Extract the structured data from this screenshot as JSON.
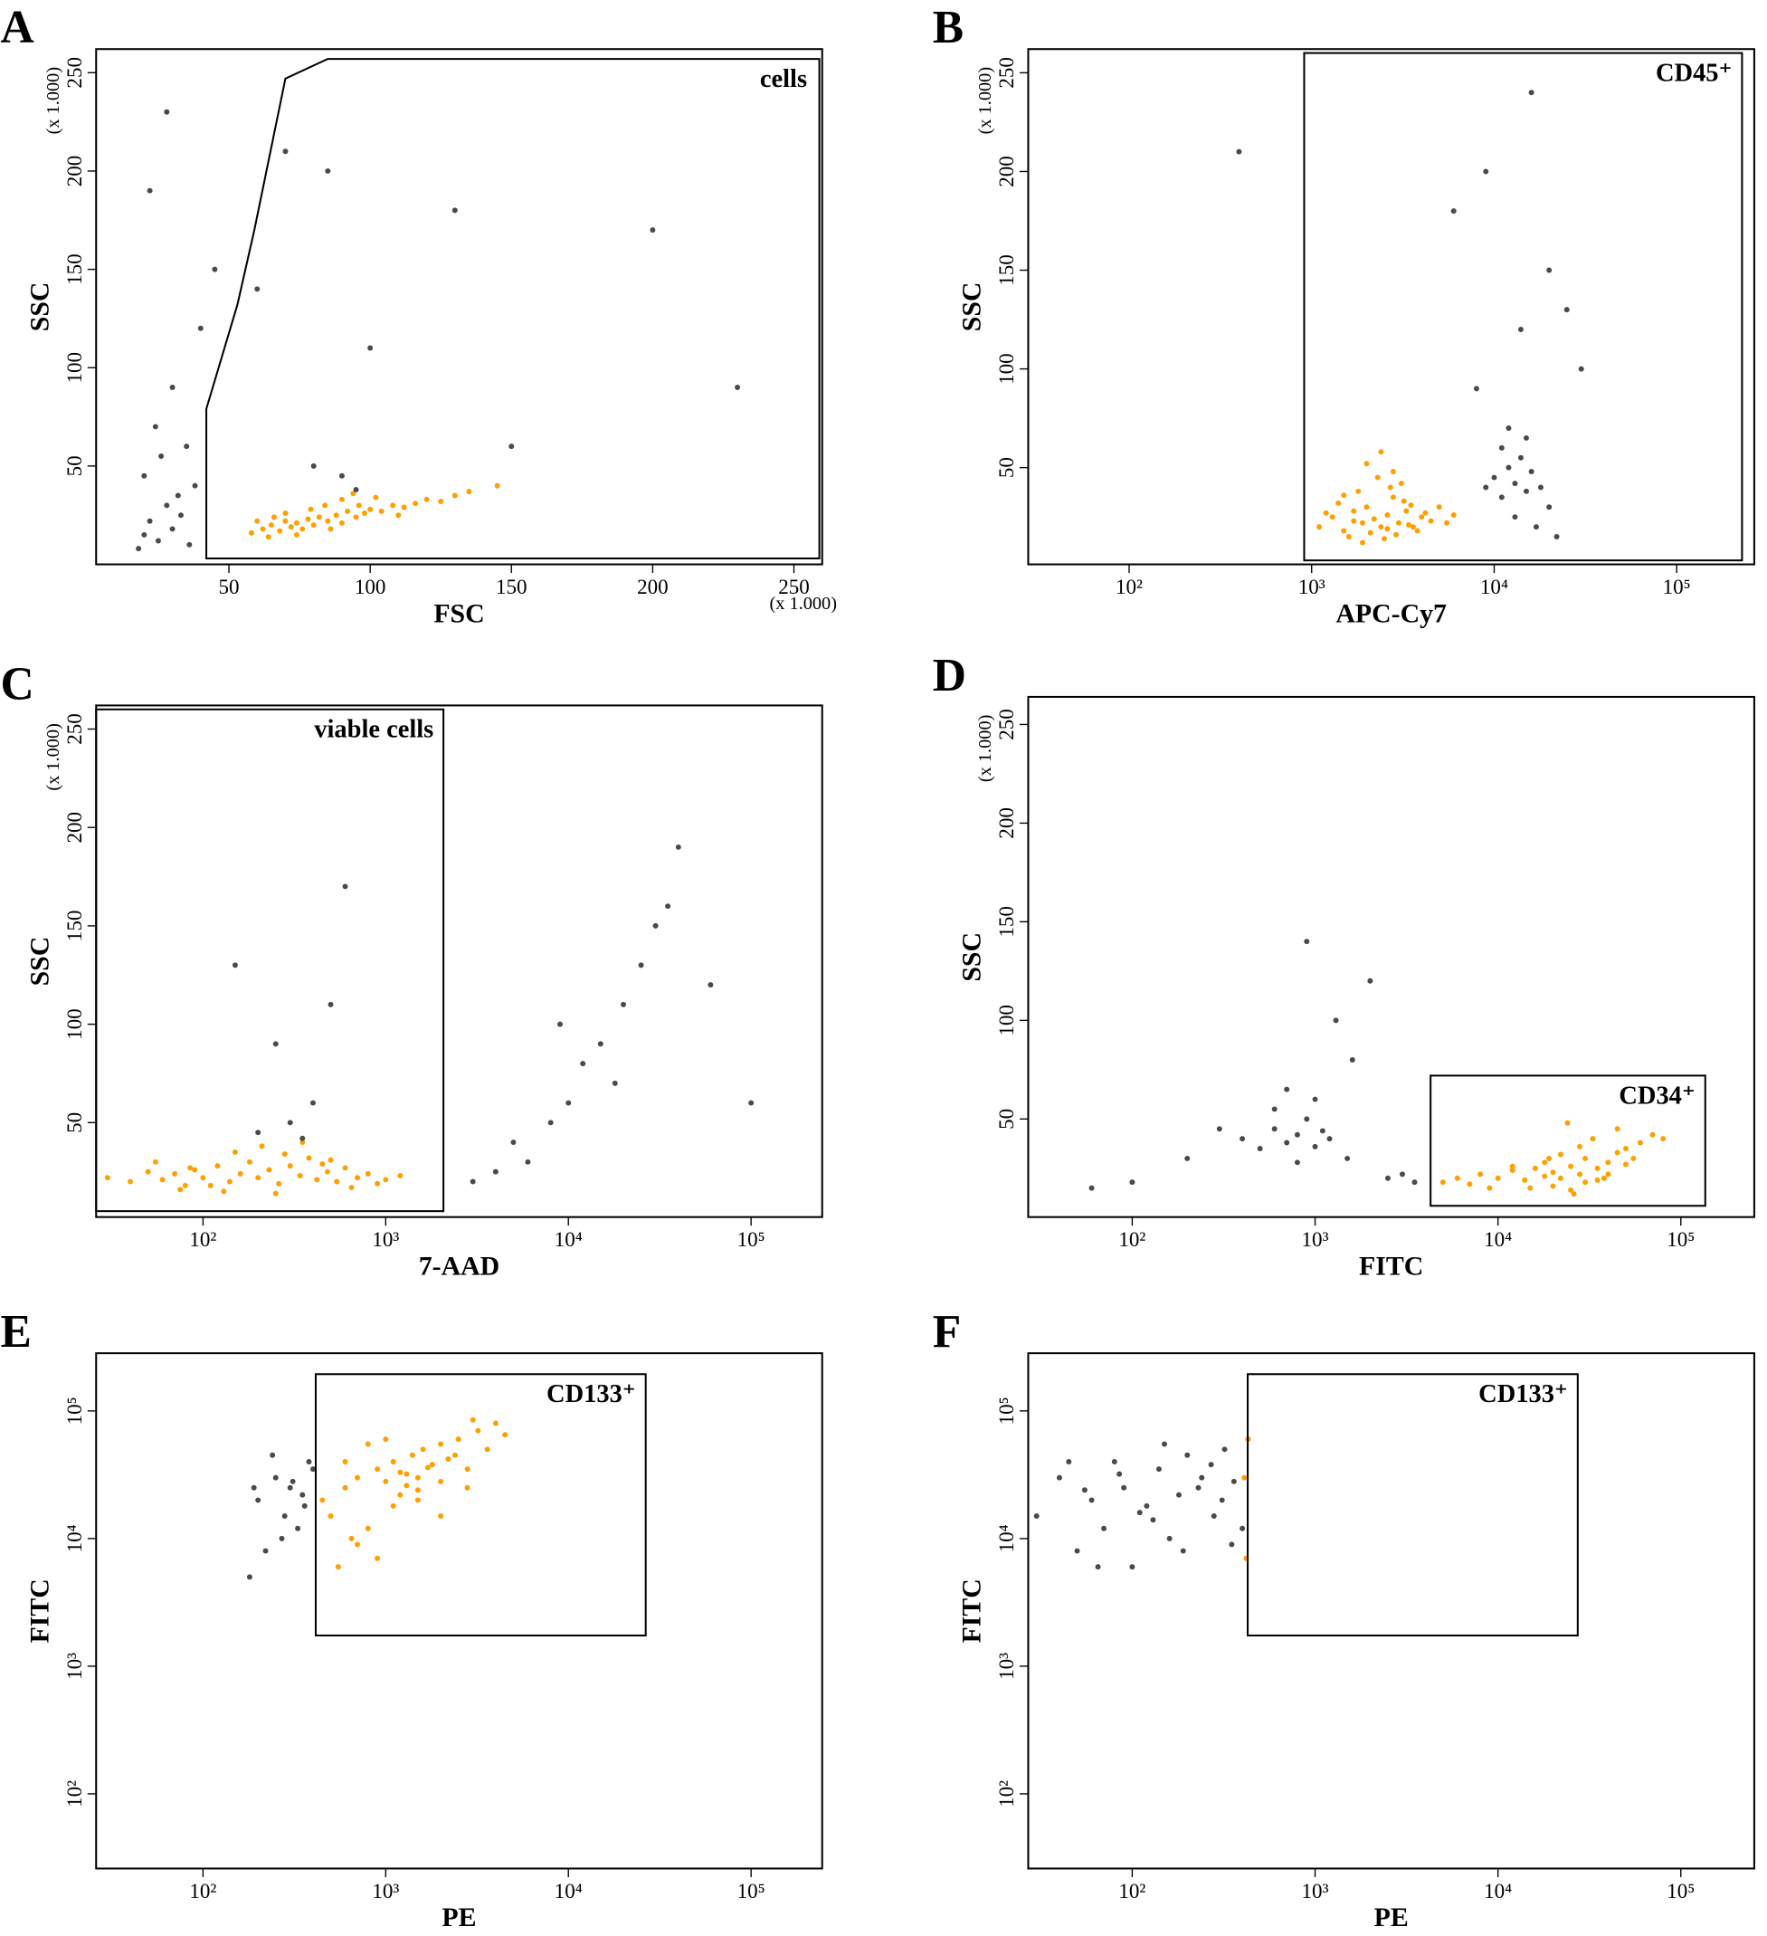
{
  "chart_data": [
    {
      "type": "scatter",
      "panel": "A",
      "x_label": "FSC",
      "y_label": "SSC",
      "x_multiplier": "(x 1.000)",
      "y_multiplier": "(x 1.000)",
      "xscale": "linear",
      "yscale": "linear",
      "xlim": [
        3,
        260
      ],
      "ylim": [
        0,
        262
      ],
      "xticks": [
        50,
        100,
        150,
        200,
        250
      ],
      "yticks": [
        50,
        100,
        150,
        200,
        250
      ],
      "gate": {
        "label": "cells",
        "points": [
          [
            42,
            3
          ],
          [
            42,
            79
          ],
          [
            53,
            132
          ],
          [
            59,
            170
          ],
          [
            70,
            247
          ],
          [
            85,
            257
          ],
          [
            259,
            257
          ],
          [
            259,
            3
          ]
        ]
      },
      "series": [
        {
          "color": "#ff9f00",
          "x": [
            58,
            62,
            65,
            68,
            70,
            72,
            74,
            76,
            78,
            80,
            82,
            85,
            88,
            90,
            92,
            95,
            98,
            100,
            104,
            108,
            112,
            116,
            120,
            125,
            130,
            135,
            66,
            70,
            74,
            79,
            84,
            90,
            96,
            102,
            60,
            64,
            86,
            94,
            110,
            145
          ],
          "values": [
            16,
            18,
            20,
            17,
            22,
            19,
            21,
            18,
            23,
            20,
            24,
            22,
            25,
            21,
            27,
            24,
            26,
            28,
            27,
            30,
            29,
            31,
            33,
            32,
            35,
            37,
            24,
            26,
            15,
            28,
            30,
            33,
            30,
            34,
            22,
            14,
            18,
            36,
            25,
            40
          ]
        },
        {
          "color": "#4a4a4a",
          "x": [
            18,
            20,
            22,
            25,
            28,
            30,
            33,
            36,
            38,
            20,
            26,
            32,
            24,
            35,
            30,
            40,
            45,
            60,
            85,
            90,
            80,
            100,
            130,
            200,
            230,
            28,
            22,
            95,
            150,
            70
          ],
          "values": [
            8,
            15,
            22,
            12,
            30,
            18,
            25,
            10,
            40,
            45,
            55,
            35,
            70,
            60,
            90,
            120,
            150,
            140,
            200,
            45,
            50,
            110,
            180,
            170,
            90,
            230,
            190,
            38,
            60,
            210
          ]
        }
      ]
    },
    {
      "type": "scatter",
      "panel": "B",
      "x_label": "APC-Cy7",
      "y_label": "SSC",
      "y_multiplier": "(x 1.000)",
      "xscale": "log",
      "yscale": "linear",
      "xlim": [
        28,
        266000
      ],
      "ylim": [
        1,
        262
      ],
      "xticks": [
        {
          "value": 100,
          "label": "10²"
        },
        {
          "value": 1000,
          "label": "10³"
        },
        {
          "value": 10000,
          "label": "10⁴"
        },
        {
          "value": 100000,
          "label": "10⁵"
        }
      ],
      "yticks": [
        50,
        100,
        150,
        200,
        250
      ],
      "gate": {
        "label": "CD45⁺",
        "x": [
          910,
          228000
        ],
        "y": [
          3,
          260
        ]
      },
      "series": [
        {
          "color": "#ff9f00",
          "x": [
            1100,
            1300,
            1500,
            1700,
            1900,
            2000,
            2200,
            2400,
            2600,
            2800,
            3000,
            3300,
            3600,
            4000,
            4500,
            5000,
            5500,
            1400,
            1800,
            2300,
            2700,
            3200,
            3800,
            1600,
            2100,
            2500,
            2900,
            3400,
            1200,
            4200,
            2000,
            2400,
            2800,
            3100,
            1500,
            6000,
            1900,
            2600,
            3500,
            1700
          ],
          "values": [
            20,
            25,
            18,
            28,
            22,
            30,
            24,
            20,
            26,
            35,
            22,
            28,
            20,
            25,
            23,
            30,
            22,
            32,
            38,
            45,
            40,
            33,
            18,
            15,
            17,
            14,
            16,
            21,
            27,
            27,
            52,
            58,
            48,
            42,
            36,
            26,
            12,
            19,
            31,
            23
          ]
        },
        {
          "color": "#4a4a4a",
          "x": [
            9000,
            10000,
            11000,
            12000,
            13000,
            14000,
            15000,
            16000,
            18000,
            20000,
            11000,
            13000,
            17000,
            15000,
            22000,
            12000,
            8000,
            14000,
            30000,
            6000,
            20000,
            9000,
            16000,
            25000,
            400
          ],
          "values": [
            40,
            45,
            35,
            50,
            42,
            55,
            38,
            48,
            40,
            30,
            60,
            25,
            20,
            65,
            15,
            70,
            90,
            120,
            100,
            180,
            150,
            200,
            240,
            130,
            210
          ]
        }
      ]
    },
    {
      "type": "scatter",
      "panel": "C",
      "x_label": "7-AAD",
      "y_label": "SSC",
      "y_multiplier": "(x 1.000)",
      "xscale": "log",
      "yscale": "linear",
      "xlim": [
        26,
        245000
      ],
      "ylim": [
        2,
        262
      ],
      "xticks": [
        {
          "value": 100,
          "label": "10²"
        },
        {
          "value": 1000,
          "label": "10³"
        },
        {
          "value": 10000,
          "label": "10⁴"
        },
        {
          "value": 100000,
          "label": "10⁵"
        }
      ],
      "yticks": [
        50,
        100,
        150,
        200,
        250
      ],
      "gate": {
        "label": "viable cells",
        "x": [
          26,
          2070
        ],
        "y": [
          5,
          260
        ]
      },
      "series": [
        {
          "color": "#ff9f00",
          "x": [
            30,
            40,
            50,
            60,
            70,
            80,
            90,
            100,
            120,
            140,
            160,
            180,
            200,
            230,
            260,
            300,
            340,
            380,
            420,
            480,
            540,
            600,
            700,
            800,
            900,
            1000,
            55,
            75,
            110,
            150,
            210,
            280,
            350,
            450,
            650,
            85,
            130,
            250,
            500,
            1200
          ],
          "values": [
            22,
            20,
            25,
            21,
            24,
            18,
            26,
            22,
            28,
            20,
            24,
            30,
            22,
            26,
            19,
            28,
            23,
            32,
            21,
            25,
            20,
            27,
            22,
            24,
            19,
            21,
            30,
            16,
            18,
            35,
            38,
            34,
            40,
            29,
            17,
            27,
            15,
            14,
            31,
            23
          ]
        },
        {
          "color": "#4a4a4a",
          "x": [
            200,
            300,
            350,
            400,
            250,
            150,
            500,
            600,
            4000,
            5000,
            6000,
            8000,
            10000,
            12000,
            15000,
            20000,
            25000,
            30000,
            35000,
            40000,
            9000,
            18000,
            3000,
            60000,
            100000
          ],
          "values": [
            45,
            50,
            42,
            60,
            90,
            130,
            110,
            170,
            25,
            40,
            30,
            50,
            60,
            80,
            90,
            110,
            130,
            150,
            160,
            190,
            100,
            70,
            20,
            120,
            60
          ]
        }
      ]
    },
    {
      "type": "scatter",
      "panel": "D",
      "x_label": "FITC",
      "y_label": "SSC",
      "y_multiplier": "(x 1.000)",
      "xscale": "log",
      "yscale": "linear",
      "xlim": [
        27,
        252000
      ],
      "ylim": [
        0.3,
        264
      ],
      "xticks": [
        {
          "value": 100,
          "label": "10²"
        },
        {
          "value": 1000,
          "label": "10³"
        },
        {
          "value": 10000,
          "label": "10⁴"
        },
        {
          "value": 100000,
          "label": "10⁵"
        }
      ],
      "yticks": [
        50,
        100,
        150,
        200,
        250
      ],
      "gate": {
        "label": "CD34⁺",
        "x": [
          4280,
          136000
        ],
        "y": [
          6,
          72
        ]
      },
      "series": [
        {
          "color": "#ff9f00",
          "x": [
            5000,
            6000,
            7000,
            8000,
            10000,
            12000,
            14000,
            16000,
            18000,
            20000,
            22000,
            25000,
            28000,
            30000,
            35000,
            40000,
            45000,
            50000,
            60000,
            70000,
            15000,
            20000,
            25000,
            30000,
            35000,
            40000,
            50000,
            18000,
            22000,
            28000,
            12000,
            9000,
            33000,
            45000,
            26000,
            24000,
            19000,
            38000,
            55000,
            80000
          ],
          "values": [
            18,
            20,
            17,
            22,
            20,
            24,
            19,
            25,
            21,
            23,
            20,
            26,
            22,
            30,
            25,
            28,
            33,
            35,
            38,
            42,
            15,
            16,
            14,
            18,
            19,
            22,
            27,
            28,
            32,
            36,
            26,
            15,
            40,
            45,
            12,
            48,
            30,
            20,
            30,
            40
          ]
        },
        {
          "color": "#4a4a4a",
          "x": [
            400,
            500,
            600,
            700,
            800,
            900,
            1000,
            1100,
            1200,
            1500,
            600,
            800,
            1000,
            700,
            300,
            200,
            100,
            60,
            2500,
            3000,
            3500,
            1300,
            900,
            2000,
            1600
          ],
          "values": [
            40,
            35,
            45,
            38,
            42,
            50,
            36,
            44,
            40,
            30,
            55,
            28,
            60,
            65,
            45,
            30,
            18,
            15,
            20,
            22,
            18,
            100,
            140,
            120,
            80
          ]
        }
      ]
    },
    {
      "type": "scatter",
      "panel": "E",
      "x_label": "PE",
      "y_label": "FITC",
      "xscale": "log",
      "yscale": "log",
      "xlim": [
        26,
        245000
      ],
      "ylim": [
        26,
        283000
      ],
      "xticks": [
        {
          "value": 100,
          "label": "10²"
        },
        {
          "value": 1000,
          "label": "10³"
        },
        {
          "value": 10000,
          "label": "10⁴"
        },
        {
          "value": 100000,
          "label": "10⁵"
        }
      ],
      "yticks": [
        {
          "value": 100,
          "label": "10²"
        },
        {
          "value": 1000,
          "label": "10³"
        },
        {
          "value": 10000,
          "label": "10⁴"
        },
        {
          "value": 100000,
          "label": "10⁵"
        }
      ],
      "gate": {
        "label": "CD133⁺",
        "x": [
          414,
          26500
        ],
        "y": [
          1740,
          194000
        ]
      },
      "series": [
        {
          "color": "#ff9f00",
          "x": [
            450,
            500,
            600,
            700,
            800,
            900,
            1000,
            1100,
            1200,
            1300,
            1400,
            1500,
            1600,
            1800,
            2000,
            2200,
            2500,
            2800,
            3200,
            3600,
            4000,
            4500,
            700,
            900,
            1100,
            1300,
            1500,
            1700,
            2000,
            2400,
            600,
            800,
            1000,
            1500,
            2000,
            550,
            650,
            1200,
            2800,
            3000
          ],
          "values": [
            20000,
            15000,
            25000,
            30000,
            12000,
            35000,
            28000,
            40000,
            22000,
            32000,
            45000,
            30000,
            50000,
            38000,
            55000,
            42000,
            60000,
            35000,
            70000,
            50000,
            80000,
            65000,
            9000,
            7000,
            18000,
            26000,
            24000,
            36000,
            28000,
            45000,
            40000,
            55000,
            60000,
            20000,
            15000,
            6000,
            10000,
            33000,
            25000,
            85000
          ]
        },
        {
          "color": "#4a4a4a",
          "x": [
            200,
            250,
            300,
            350,
            400,
            180,
            220,
            280,
            330,
            380,
            240,
            310,
            360,
            190,
            270
          ],
          "values": [
            20000,
            30000,
            25000,
            22000,
            35000,
            5000,
            8000,
            15000,
            12000,
            40000,
            45000,
            28000,
            18000,
            25000,
            10000
          ]
        }
      ]
    },
    {
      "type": "scatter",
      "panel": "F",
      "x_label": "PE",
      "y_label": "FITC",
      "xscale": "log",
      "yscale": "log",
      "xlim": [
        27,
        252000
      ],
      "ylim": [
        26,
        283000
      ],
      "xticks": [
        {
          "value": 100,
          "label": "10²"
        },
        {
          "value": 1000,
          "label": "10³"
        },
        {
          "value": 10000,
          "label": "10⁴"
        },
        {
          "value": 100000,
          "label": "10⁵"
        }
      ],
      "yticks": [
        {
          "value": 100,
          "label": "10²"
        },
        {
          "value": 1000,
          "label": "10³"
        },
        {
          "value": 10000,
          "label": "10⁴"
        },
        {
          "value": 100000,
          "label": "10⁵"
        }
      ],
      "gate": {
        "label": "CD133⁺",
        "x": [
          428,
          27300
        ],
        "y": [
          1740,
          194000
        ]
      },
      "series": [
        {
          "color": "#ff9f00",
          "x": [
            420,
            430,
            410
          ],
          "values": [
            7000,
            60000,
            30000
          ]
        },
        {
          "color": "#4a4a4a",
          "x": [
            30,
            40,
            50,
            60,
            70,
            80,
            90,
            100,
            120,
            140,
            160,
            180,
            200,
            240,
            280,
            320,
            360,
            400,
            45,
            65,
            85,
            110,
            150,
            190,
            230,
            270,
            310,
            350,
            55,
            130
          ],
          "values": [
            15000,
            30000,
            8000,
            20000,
            12000,
            40000,
            25000,
            6000,
            18000,
            35000,
            10000,
            22000,
            45000,
            30000,
            15000,
            50000,
            28000,
            12000,
            40000,
            6000,
            32000,
            16000,
            55000,
            8000,
            25000,
            38000,
            20000,
            9000,
            24000,
            14000
          ]
        }
      ]
    }
  ]
}
